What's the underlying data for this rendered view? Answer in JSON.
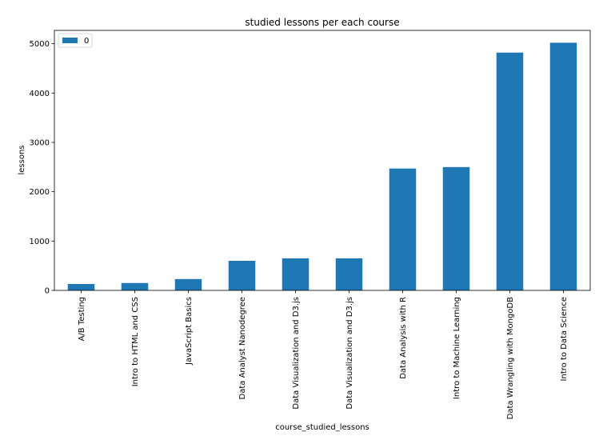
{
  "chart_data": {
    "type": "bar",
    "title": "studied lessons per each course",
    "xlabel": "course_studied_lessons",
    "ylabel": "lessons",
    "categories": [
      "A/B Testing",
      "Intro to HTML and CSS",
      "JavaScript Basics",
      "Data Analyst Nanodegree",
      "Data Visualization and D3.js",
      "Data Visualization and D3.js",
      "Data Analysis with R",
      "Intro to Machine Learning",
      "Data Wrangling with MongoDB",
      "Intro to Data Science"
    ],
    "series": [
      {
        "name": "0",
        "values": [
          130,
          150,
          230,
          600,
          650,
          650,
          2470,
          2500,
          4820,
          5020
        ]
      }
    ],
    "ylim": [
      0,
      5270
    ],
    "yticks": [
      0,
      1000,
      2000,
      3000,
      4000,
      5000
    ],
    "grid": false,
    "legend": "top-left",
    "bar_color": "#1f77b4"
  }
}
